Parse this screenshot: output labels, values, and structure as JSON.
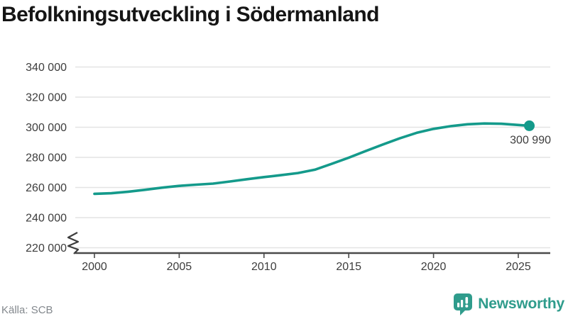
{
  "header": {
    "title": "Befolkningsutveckling i Södermanland"
  },
  "chart_data": {
    "type": "line",
    "title": "Befolkningsutveckling i Södermanland",
    "x": [
      2000,
      2001,
      2002,
      2003,
      2004,
      2005,
      2006,
      2007,
      2008,
      2009,
      2010,
      2011,
      2012,
      2013,
      2014,
      2015,
      2016,
      2017,
      2018,
      2019,
      2020,
      2021,
      2022,
      2023,
      2024,
      2025.65
    ],
    "values": [
      255800,
      256200,
      257200,
      258500,
      259900,
      261100,
      261900,
      262600,
      264000,
      265500,
      266900,
      268200,
      269600,
      271800,
      275700,
      279800,
      284200,
      288500,
      292600,
      296300,
      298900,
      300700,
      302000,
      302500,
      302300,
      300990
    ],
    "end_label": "300 990",
    "xticks": {
      "values": [
        2000,
        2005,
        2010,
        2015,
        2020,
        2025
      ],
      "labels": [
        "2000",
        "2005",
        "2010",
        "2015",
        "2020",
        "2025"
      ]
    },
    "yticks": {
      "values": [
        220000,
        240000,
        260000,
        280000,
        300000,
        320000,
        340000
      ],
      "labels": [
        "220 000",
        "240 000",
        "260 000",
        "280 000",
        "300 000",
        "320 000",
        "340 000"
      ]
    },
    "xlim": [
      2000,
      2027
    ],
    "ylim": [
      214000,
      344000
    ],
    "grid": "horizontal",
    "axis_break": true,
    "legend": "none"
  },
  "footer": {
    "source": "Källa: SCB",
    "brand": "Newsworthy"
  },
  "colors": {
    "line": "#149a8b",
    "dot": "#149a8b",
    "grid": "#e4e4e4",
    "axis": "#4a4a4a",
    "tick_text": "#3d3d3d",
    "title": "#151515",
    "muted": "#83888d",
    "brand": "#2f9c8c"
  }
}
